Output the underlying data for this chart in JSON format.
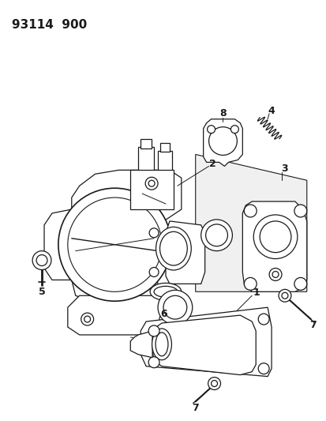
{
  "title": "93114  900",
  "background_color": "#ffffff",
  "line_color": "#1a1a1a",
  "title_fontsize": 11,
  "label_fontsize": 9,
  "fig_width": 4.14,
  "fig_height": 5.33,
  "dpi": 100
}
